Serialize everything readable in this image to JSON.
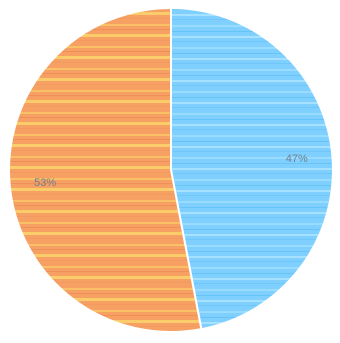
{
  "chart_data": {
    "type": "pie",
    "slices": [
      {
        "label": "47%",
        "value": 47,
        "color": "#7ccfff"
      },
      {
        "label": "53%",
        "value": 53,
        "color": "#f5a164"
      }
    ]
  }
}
